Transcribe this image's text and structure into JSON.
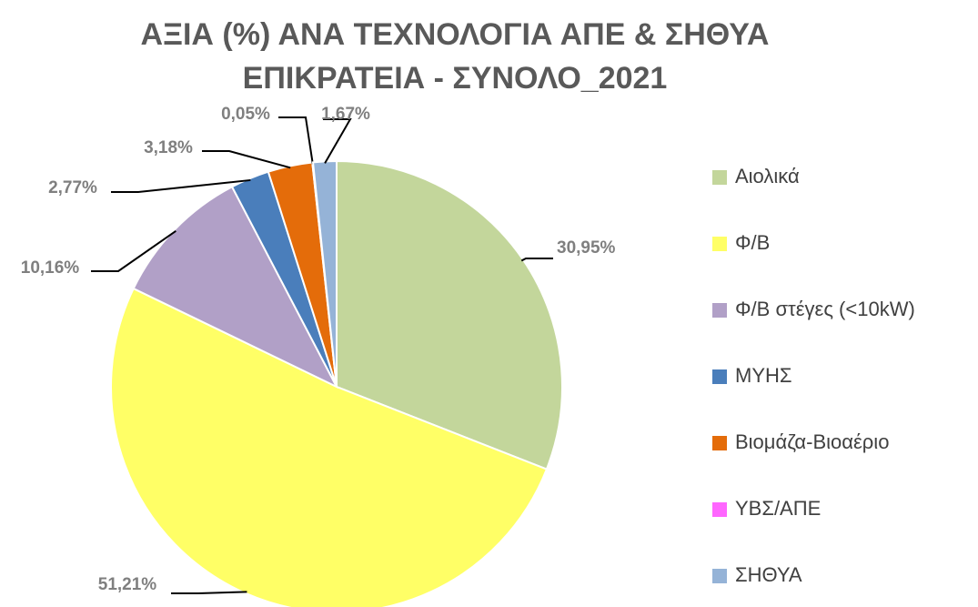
{
  "chart_data": {
    "type": "pie",
    "title": [
      "ΑΞΙΑ (%) ΑΝΑ ΤΕΧΝΟΛΟΓΙΑ ΑΠΕ & ΣΗΘΥΑ",
      "ΕΠΙΚΡΑΤΕΙΑ - ΣΥΝΟΛΟ_2021"
    ],
    "categories": [
      "Αιολικά",
      "Φ/Β",
      "Φ/Β στέγες (<10kW)",
      "ΜΥΗΣ",
      "Βιομάζα-Βιοαέριο",
      "ΥΒΣ/ΑΠΕ",
      "ΣΗΘΥΑ"
    ],
    "values": [
      30.95,
      51.21,
      10.16,
      2.77,
      3.18,
      0.05,
      1.67
    ],
    "value_labels": [
      "30,95%",
      "51,21%",
      "10,16%",
      "2,77%",
      "3,18%",
      "0,05%",
      "1,67%"
    ],
    "colors": [
      "#c3d69b",
      "#ffff66",
      "#b1a0c7",
      "#4a7ebb",
      "#e46c0a",
      "#ff66ff",
      "#95b3d7"
    ],
    "legend": "right"
  }
}
